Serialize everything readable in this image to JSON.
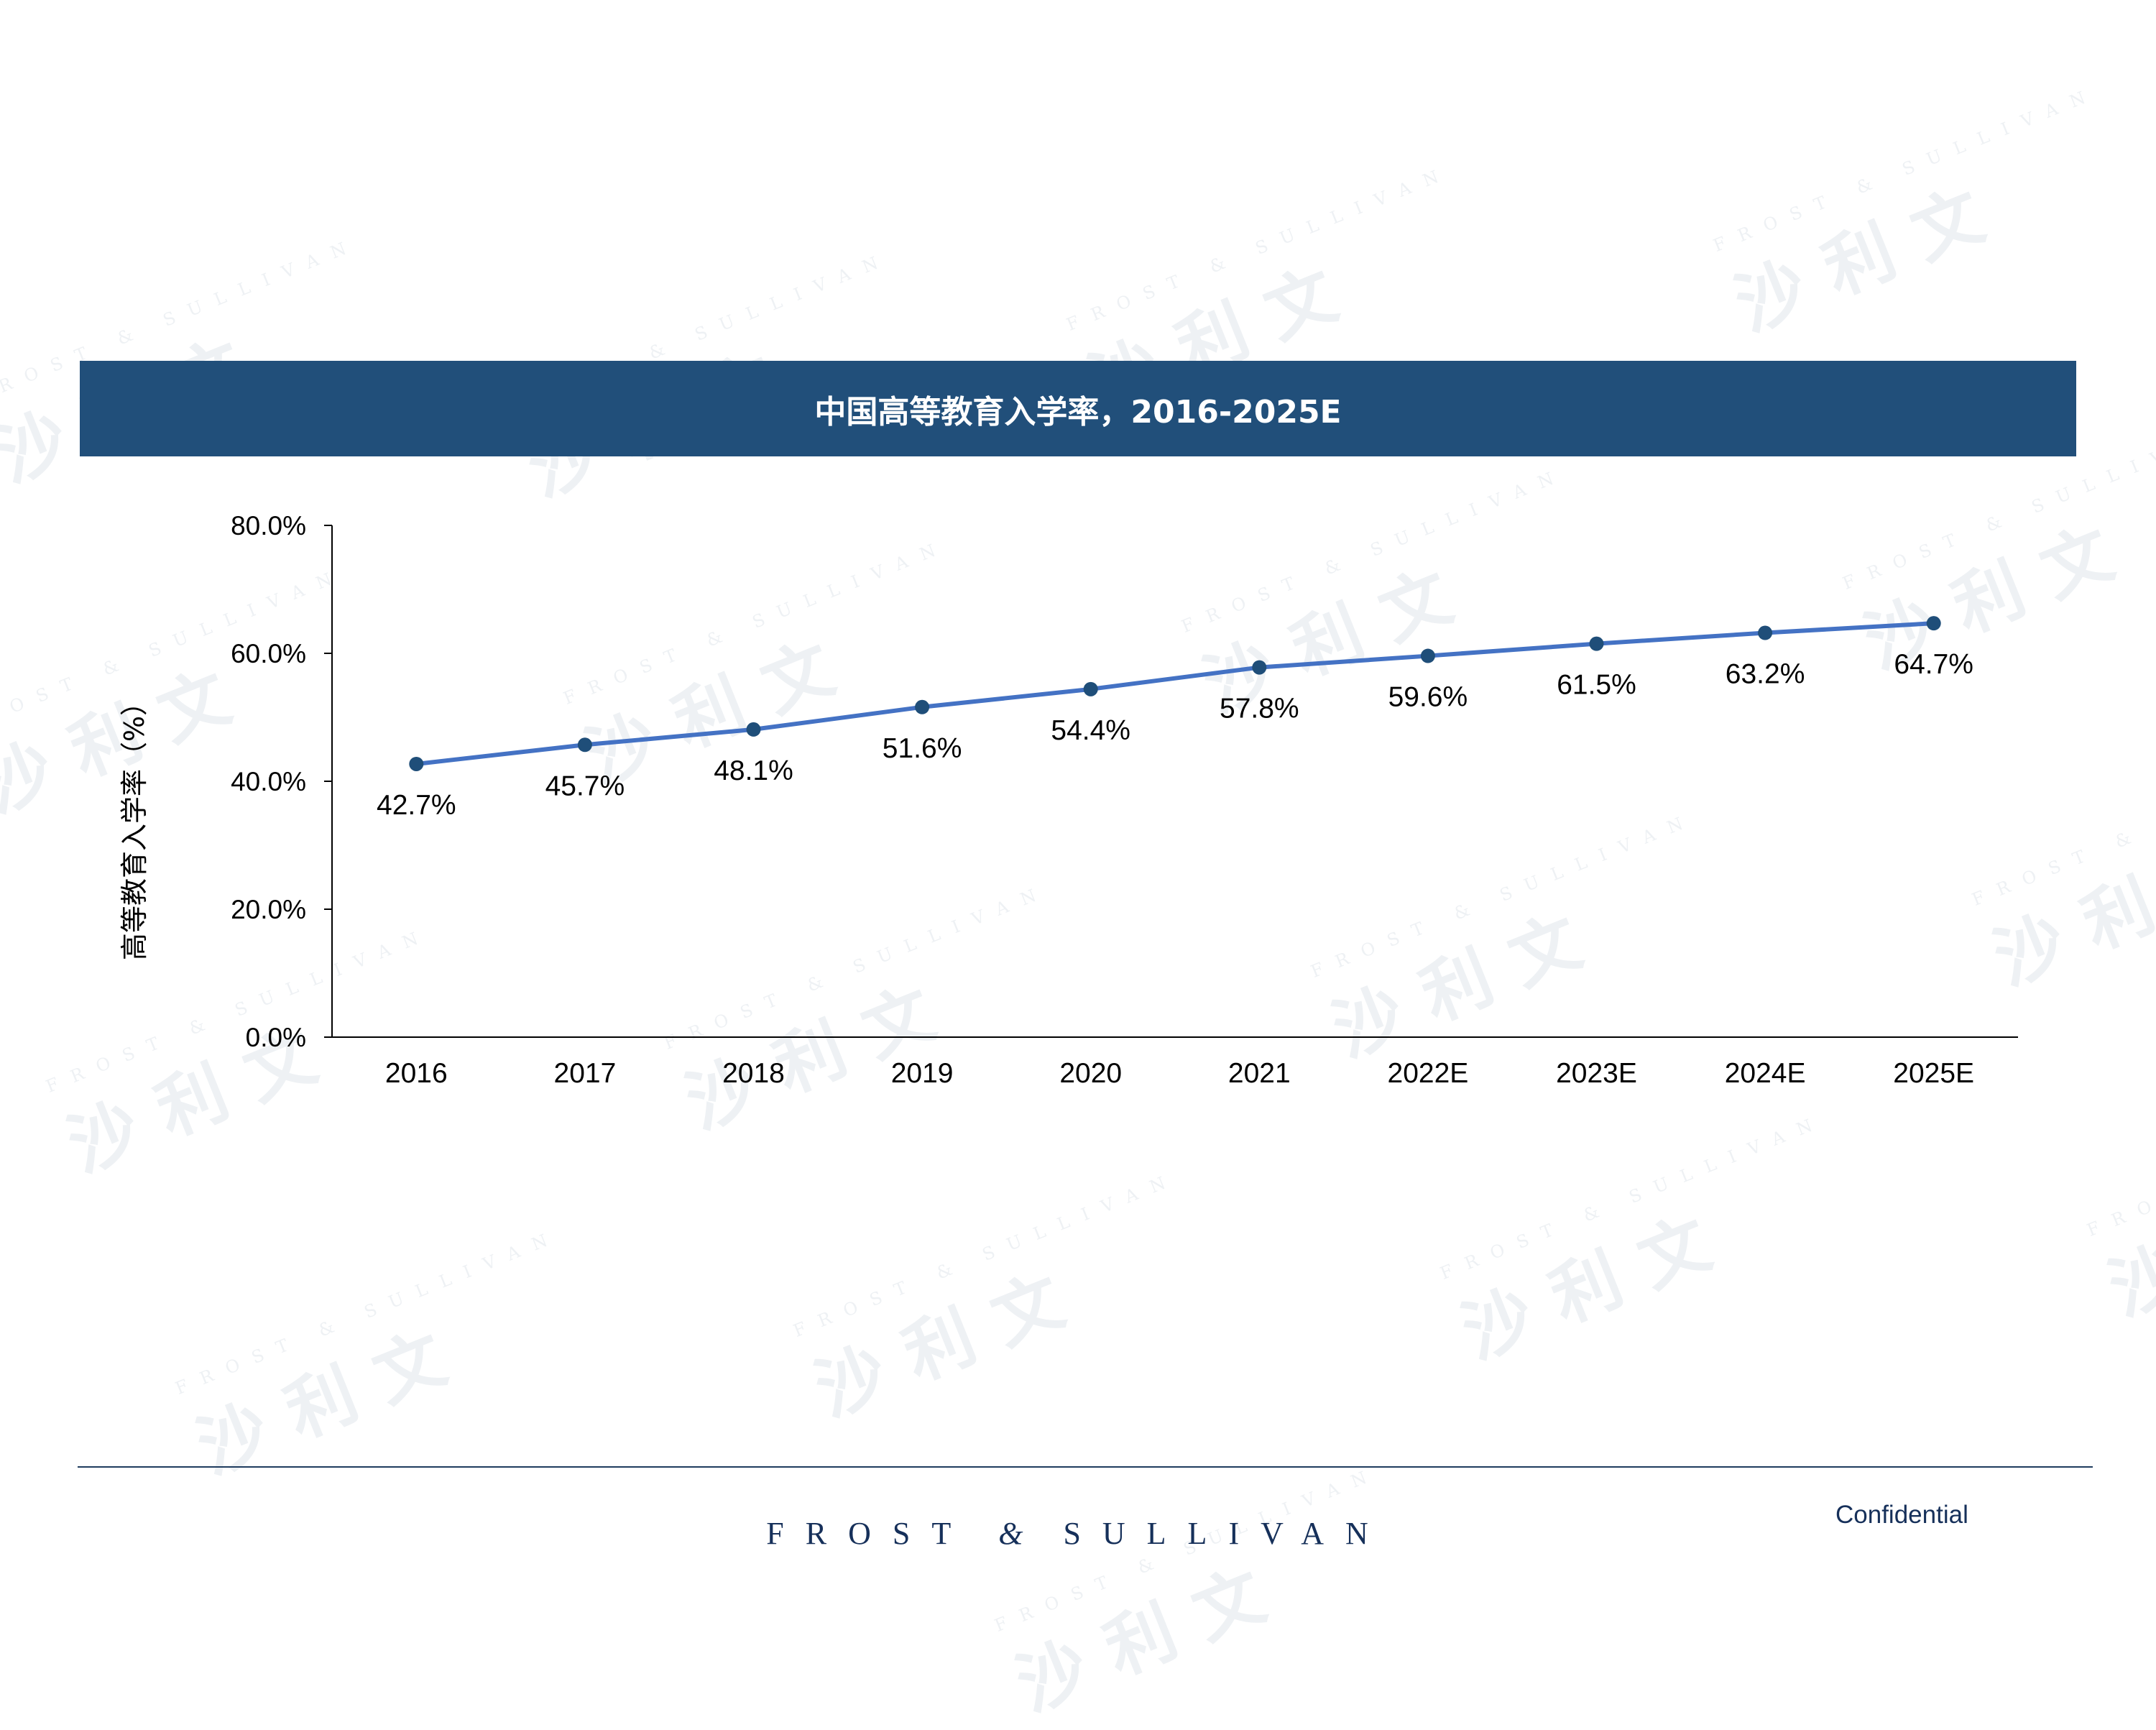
{
  "header": {
    "title": "中国高等教育入学率，2016-2025E"
  },
  "watermark": {
    "en": "FROST & SULLIVAN",
    "cn": "沙利文"
  },
  "footer": {
    "brand_left": "FROST",
    "brand_amp": "&",
    "brand_right": "SULLIVAN",
    "confidential": "Confidential"
  },
  "colors": {
    "title_bar": "#214f7a",
    "series_line": "#4472c4",
    "marker": "#1f4e79",
    "axis": "#000000"
  },
  "chart_data": {
    "type": "line",
    "categories": [
      "2016",
      "2017",
      "2018",
      "2019",
      "2020",
      "2021",
      "2022E",
      "2023E",
      "2024E",
      "2025E"
    ],
    "values": [
      42.7,
      45.7,
      48.1,
      51.6,
      54.4,
      57.8,
      59.6,
      61.5,
      63.2,
      64.7
    ],
    "data_labels": [
      "42.7%",
      "45.7%",
      "48.1%",
      "51.6%",
      "54.4%",
      "57.8%",
      "59.6%",
      "61.5%",
      "63.2%",
      "64.7%"
    ],
    "ylabel": "高等教育入学率（%）",
    "ylim": [
      0,
      80
    ],
    "yticks": [
      0,
      20,
      40,
      60,
      80
    ],
    "ytick_labels": [
      "0.0%",
      "20.0%",
      "40.0%",
      "60.0%",
      "80.0%"
    ],
    "grid": false,
    "legend": "none"
  }
}
